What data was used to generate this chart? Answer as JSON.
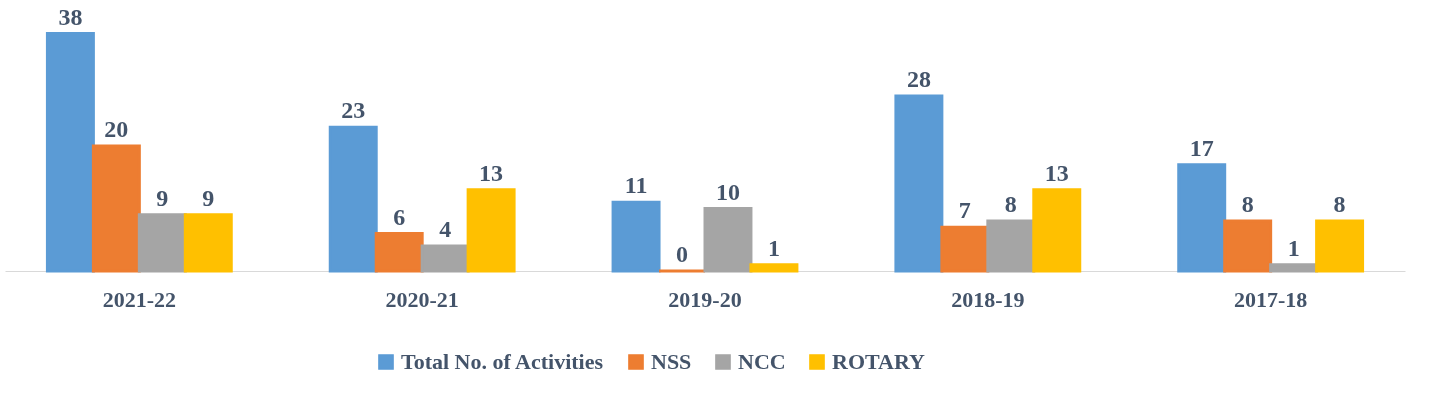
{
  "chart_data": {
    "type": "bar",
    "categories": [
      "2021-22",
      "2020-21",
      "2019-20",
      "2018-19",
      "2017-18"
    ],
    "series": [
      {
        "name": "Total No. of Activities",
        "color": "#5b9bd5",
        "values": [
          38,
          23,
          11,
          28,
          17
        ]
      },
      {
        "name": "NSS",
        "color": "#ed7d31",
        "values": [
          20,
          6,
          0,
          7,
          8
        ]
      },
      {
        "name": "NCC",
        "color": "#a5a5a5",
        "values": [
          9,
          4,
          10,
          8,
          1
        ]
      },
      {
        "name": "ROTARY",
        "color": "#ffc000",
        "values": [
          9,
          13,
          1,
          13,
          8
        ]
      }
    ],
    "data_labels": true,
    "legend": "bottom",
    "grid": false,
    "tick_labels": "x"
  }
}
